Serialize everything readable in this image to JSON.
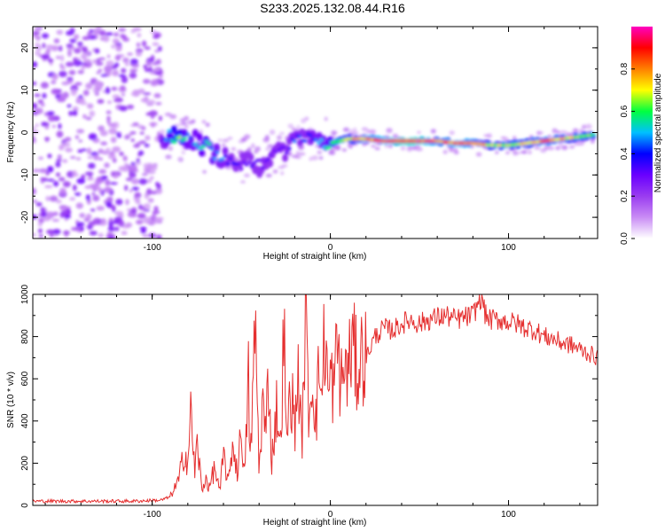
{
  "title": "S233.2025.132.08.44.R16",
  "colors": {
    "snr_line": "#e53030",
    "axis": "#000000",
    "colormap_stops": [
      "#ffffff",
      "#c98cf5",
      "#9a3cf0",
      "#6a00ff",
      "#0000ff",
      "#00c0ff",
      "#00ff40",
      "#ffff00",
      "#ff8000",
      "#ff0000",
      "#ff00c0"
    ]
  },
  "chart_data": [
    {
      "type": "heatmap",
      "title": "",
      "xlabel": "Height of straight line (km)",
      "ylabel": "Frequency (Hz)",
      "xlim": [
        -167,
        150
      ],
      "ylim": [
        -25,
        25
      ],
      "xticks": [
        -100,
        0,
        100
      ],
      "yticks": [
        -20,
        -10,
        0,
        10,
        20
      ],
      "colorbar": {
        "label": "Normalized spectral amplitude",
        "range": [
          0,
          1
        ],
        "ticks": [
          0.0,
          0.2,
          0.4,
          0.6,
          0.8
        ]
      },
      "noise_region_x": [
        -167,
        -95
      ],
      "ridge": {
        "x": [
          -95,
          -90,
          -85,
          -80,
          -75,
          -70,
          -65,
          -60,
          -55,
          -50,
          -45,
          -40,
          -35,
          -30,
          -25,
          -20,
          -15,
          -10,
          -5,
          0,
          5,
          10,
          20,
          30,
          40,
          50,
          60,
          70,
          80,
          90,
          100,
          110,
          120,
          130,
          140,
          148
        ],
        "freq": [
          -2,
          -1,
          -1.5,
          -1,
          -2,
          -3.5,
          -5,
          -6,
          -7,
          -7.5,
          -6.5,
          -8,
          -6,
          -5,
          -4,
          -1,
          -0.5,
          -1.5,
          -2,
          -2.5,
          -2,
          -1.5,
          -1.5,
          -2,
          -2,
          -2,
          -2,
          -2.5,
          -2.5,
          -3,
          -3,
          -2.5,
          -2,
          -1.5,
          -1,
          -0.5
        ],
        "amplitude": [
          0.3,
          0.6,
          0.7,
          0.5,
          0.5,
          0.6,
          0.5,
          0.45,
          0.4,
          0.3,
          0.35,
          0.3,
          0.35,
          0.3,
          0.3,
          0.45,
          0.4,
          0.45,
          0.5,
          0.6,
          0.7,
          0.7,
          0.85,
          0.9,
          0.95,
          0.95,
          0.85,
          0.9,
          0.85,
          0.7,
          0.7,
          0.8,
          0.85,
          0.8,
          0.7,
          0.6
        ]
      }
    },
    {
      "type": "line",
      "title": "",
      "xlabel": "Height of straight line (km)",
      "ylabel": "SNR (10 * v/v)",
      "xlim": [
        -167,
        150
      ],
      "ylim": [
        0,
        1000
      ],
      "xticks": [
        -100,
        0,
        100
      ],
      "yticks": [
        0,
        200,
        400,
        600,
        800,
        1000
      ],
      "series": [
        {
          "x": [
            -167,
            -150,
            -130,
            -110,
            -95,
            -90,
            -85,
            -82,
            -80,
            -78,
            -76,
            -75,
            -72,
            -70,
            -68,
            -65,
            -62,
            -60,
            -57,
            -55,
            -52,
            -50,
            -48,
            -46,
            -45,
            -42,
            -40,
            -38,
            -36,
            -35,
            -33,
            -30,
            -28,
            -26,
            -25,
            -22,
            -20,
            -18,
            -16,
            -14,
            -12,
            -10,
            -8,
            -6,
            -5,
            -3,
            -1,
            0,
            2,
            4,
            6,
            8,
            10,
            12,
            15,
            18,
            20,
            25,
            30,
            35,
            40,
            45,
            50,
            55,
            60,
            65,
            70,
            75,
            80,
            83,
            85,
            87,
            90,
            95,
            100,
            105,
            110,
            115,
            120,
            125,
            130,
            135,
            140,
            145,
            150
          ],
          "y": [
            20,
            20,
            20,
            20,
            25,
            40,
            120,
            260,
            200,
            460,
            120,
            320,
            60,
            140,
            80,
            180,
            60,
            240,
            100,
            300,
            150,
            380,
            120,
            620,
            200,
            860,
            150,
            500,
            300,
            700,
            200,
            480,
            260,
            900,
            300,
            560,
            350,
            650,
            260,
            930,
            420,
            620,
            400,
            700,
            500,
            850,
            480,
            620,
            540,
            780,
            560,
            660,
            620,
            780,
            640,
            720,
            700,
            800,
            840,
            830,
            860,
            880,
            860,
            880,
            890,
            900,
            880,
            890,
            900,
            960,
            1000,
            900,
            880,
            880,
            870,
            860,
            840,
            830,
            800,
            790,
            770,
            760,
            740,
            720,
            700
          ]
        }
      ]
    }
  ]
}
